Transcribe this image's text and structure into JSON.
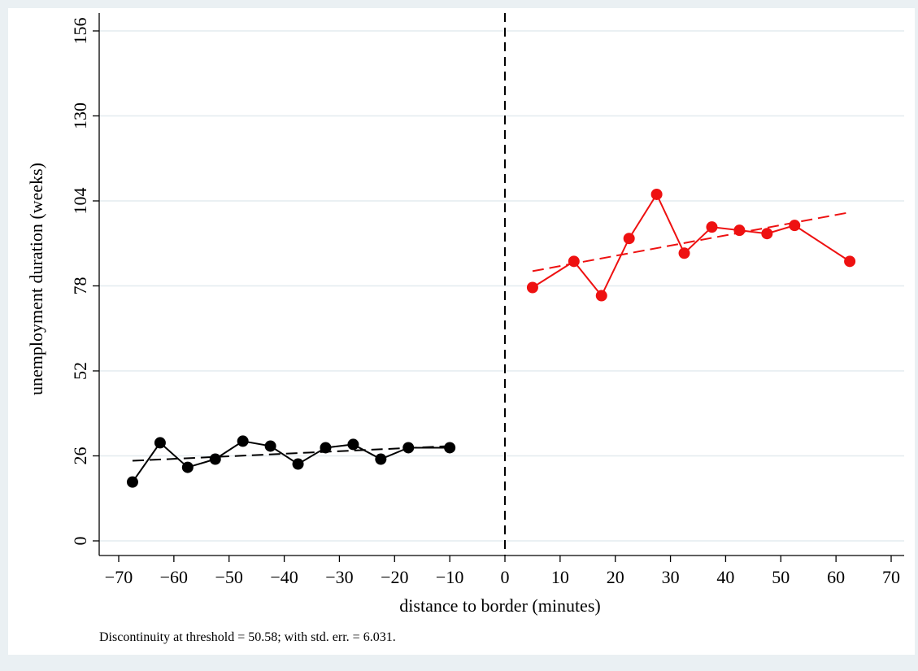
{
  "chart_data": {
    "type": "scatter",
    "title": "",
    "xlabel": "distance to border (minutes)",
    "ylabel": "unemployment duration (weeks)",
    "xlim": [
      -70,
      70
    ],
    "ylim": [
      0,
      156
    ],
    "xticks": [
      -70,
      -60,
      -50,
      -40,
      -30,
      -20,
      -10,
      0,
      10,
      20,
      30,
      40,
      50,
      60,
      70
    ],
    "yticks": [
      0,
      26,
      52,
      78,
      104,
      130,
      156
    ],
    "grid": "horizontal",
    "threshold": 0,
    "note": "Discontinuity at threshold = 50.58; with std. err. = 6.031.",
    "series": [
      {
        "side": "left",
        "color": "#000000",
        "x": [
          -67.5,
          -62.5,
          -57.5,
          -52.5,
          -47.5,
          -42.5,
          -37.5,
          -32.5,
          -27.5,
          -22.5,
          -17.5,
          -10
        ],
        "y": [
          18,
          30,
          22.5,
          25,
          30.5,
          29,
          23.5,
          28.5,
          29.5,
          25,
          28.5,
          28.5
        ]
      },
      {
        "side": "right",
        "color": "#ee1111",
        "x": [
          5,
          12.5,
          17.5,
          22.5,
          27.5,
          32.5,
          37.5,
          42.5,
          47.5,
          52.5,
          62.5
        ],
        "y": [
          77.5,
          85.5,
          75,
          92.5,
          106,
          88,
          96,
          95,
          94,
          96.5,
          85.5
        ]
      }
    ],
    "fits": [
      {
        "side": "left",
        "color": "#000000",
        "x": [
          -67.5,
          -10
        ],
        "y": [
          24.5,
          29
        ]
      },
      {
        "side": "right",
        "color": "#ee1111",
        "x": [
          5,
          62.5
        ],
        "y": [
          82.5,
          100.5
        ]
      }
    ]
  }
}
